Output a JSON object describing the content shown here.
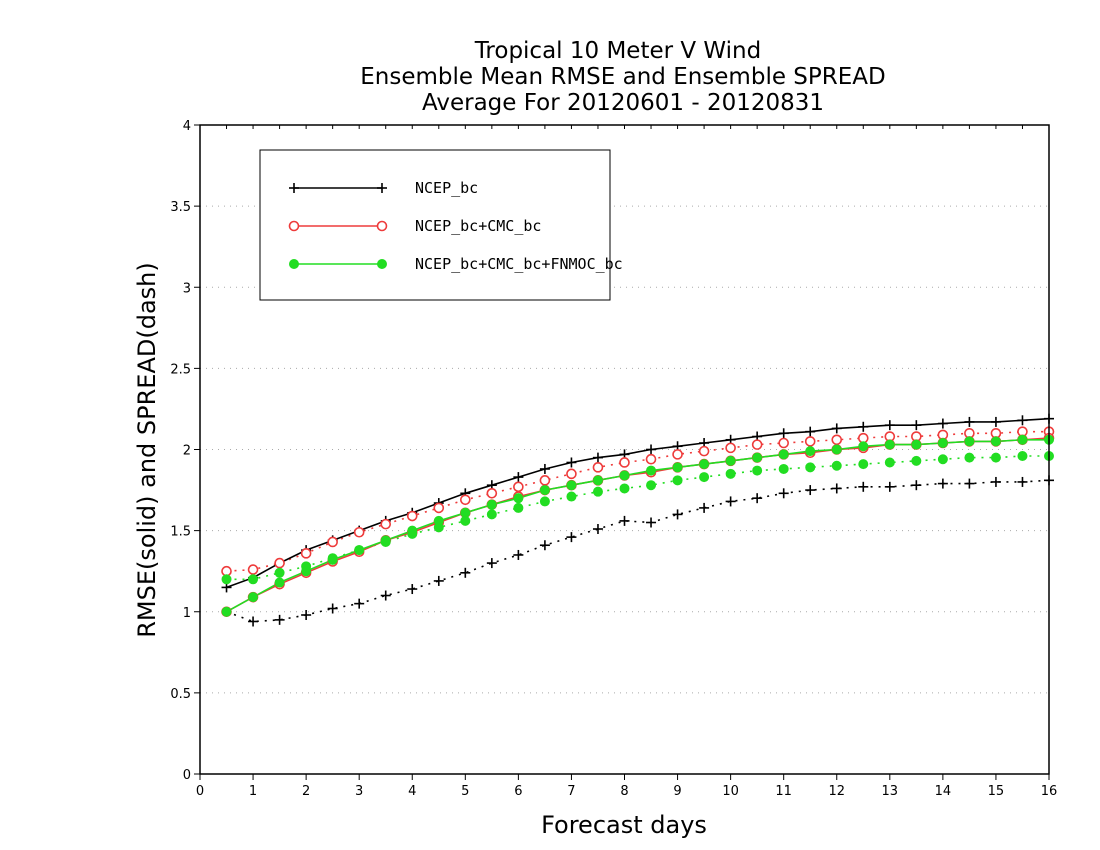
{
  "chart_data": {
    "type": "line",
    "title": [
      "Tropical 10 Meter V Wind",
      "Ensemble Mean RMSE and Ensemble SPREAD",
      "Average For 20120601 - 20120831"
    ],
    "xlabel": "Forecast days",
    "ylabel": "RMSE(solid) and SPREAD(dash)",
    "xlim": [
      0,
      16
    ],
    "ylim": [
      0,
      4
    ],
    "xticks": [
      0,
      1,
      2,
      3,
      4,
      5,
      6,
      7,
      8,
      9,
      10,
      11,
      12,
      13,
      14,
      15,
      16
    ],
    "yticks": [
      0,
      0.5,
      1,
      1.5,
      2,
      2.5,
      3,
      3.5,
      4
    ],
    "ytick_labels": [
      "0",
      "0.5",
      "1",
      "1.5",
      "2",
      "2.5",
      "3",
      "3.5",
      "4"
    ],
    "grid": "horizontal dotted",
    "legend_position": "top-left",
    "x": [
      0.5,
      1,
      1.5,
      2,
      2.5,
      3,
      3.5,
      4,
      4.5,
      5,
      5.5,
      6,
      6.5,
      7,
      7.5,
      8,
      8.5,
      9,
      9.5,
      10,
      10.5,
      11,
      11.5,
      12,
      12.5,
      13,
      13.5,
      14,
      14.5,
      15,
      15.5,
      16
    ],
    "series": [
      {
        "name": "NCEP_bc",
        "color": "#000000",
        "marker": "plus",
        "rmse": [
          1.15,
          1.21,
          1.3,
          1.38,
          1.44,
          1.5,
          1.56,
          1.61,
          1.67,
          1.73,
          1.78,
          1.83,
          1.88,
          1.92,
          1.95,
          1.97,
          2.0,
          2.02,
          2.04,
          2.06,
          2.08,
          2.1,
          2.11,
          2.13,
          2.14,
          2.15,
          2.15,
          2.16,
          2.17,
          2.17,
          2.18,
          2.19
        ],
        "spread": [
          1.0,
          0.94,
          0.95,
          0.98,
          1.02,
          1.05,
          1.1,
          1.14,
          1.19,
          1.24,
          1.3,
          1.35,
          1.41,
          1.46,
          1.51,
          1.56,
          1.55,
          1.6,
          1.64,
          1.68,
          1.7,
          1.73,
          1.75,
          1.76,
          1.77,
          1.77,
          1.78,
          1.79,
          1.79,
          1.8,
          1.8,
          1.81
        ]
      },
      {
        "name": "NCEP_bc+CMC_bc",
        "color": "#ee3b3b",
        "marker": "open-circle",
        "rmse": [
          1.0,
          1.09,
          1.17,
          1.24,
          1.31,
          1.37,
          1.44,
          1.49,
          1.55,
          1.61,
          1.66,
          1.71,
          1.75,
          1.78,
          1.81,
          1.84,
          1.86,
          1.89,
          1.91,
          1.93,
          1.95,
          1.97,
          1.98,
          2.0,
          2.01,
          2.03,
          2.03,
          2.04,
          2.05,
          2.05,
          2.06,
          2.07
        ],
        "spread": [
          1.25,
          1.26,
          1.3,
          1.36,
          1.43,
          1.49,
          1.54,
          1.59,
          1.64,
          1.69,
          1.73,
          1.77,
          1.81,
          1.85,
          1.89,
          1.92,
          1.94,
          1.97,
          1.99,
          2.01,
          2.03,
          2.04,
          2.05,
          2.06,
          2.07,
          2.08,
          2.08,
          2.09,
          2.1,
          2.1,
          2.11,
          2.11
        ]
      },
      {
        "name": "NCEP_bc+CMC_bc+FNMOC_bc",
        "color": "#22dd22",
        "marker": "filled-circle",
        "rmse": [
          1.0,
          1.09,
          1.18,
          1.25,
          1.32,
          1.38,
          1.44,
          1.5,
          1.56,
          1.61,
          1.66,
          1.7,
          1.75,
          1.78,
          1.81,
          1.84,
          1.87,
          1.89,
          1.91,
          1.93,
          1.95,
          1.97,
          1.99,
          2.0,
          2.02,
          2.03,
          2.03,
          2.04,
          2.05,
          2.05,
          2.06,
          2.06
        ],
        "spread": [
          1.2,
          1.2,
          1.24,
          1.28,
          1.33,
          1.38,
          1.43,
          1.48,
          1.52,
          1.56,
          1.6,
          1.64,
          1.68,
          1.71,
          1.74,
          1.76,
          1.78,
          1.81,
          1.83,
          1.85,
          1.87,
          1.88,
          1.89,
          1.9,
          1.91,
          1.92,
          1.93,
          1.94,
          1.95,
          1.95,
          1.96,
          1.96
        ]
      }
    ]
  }
}
